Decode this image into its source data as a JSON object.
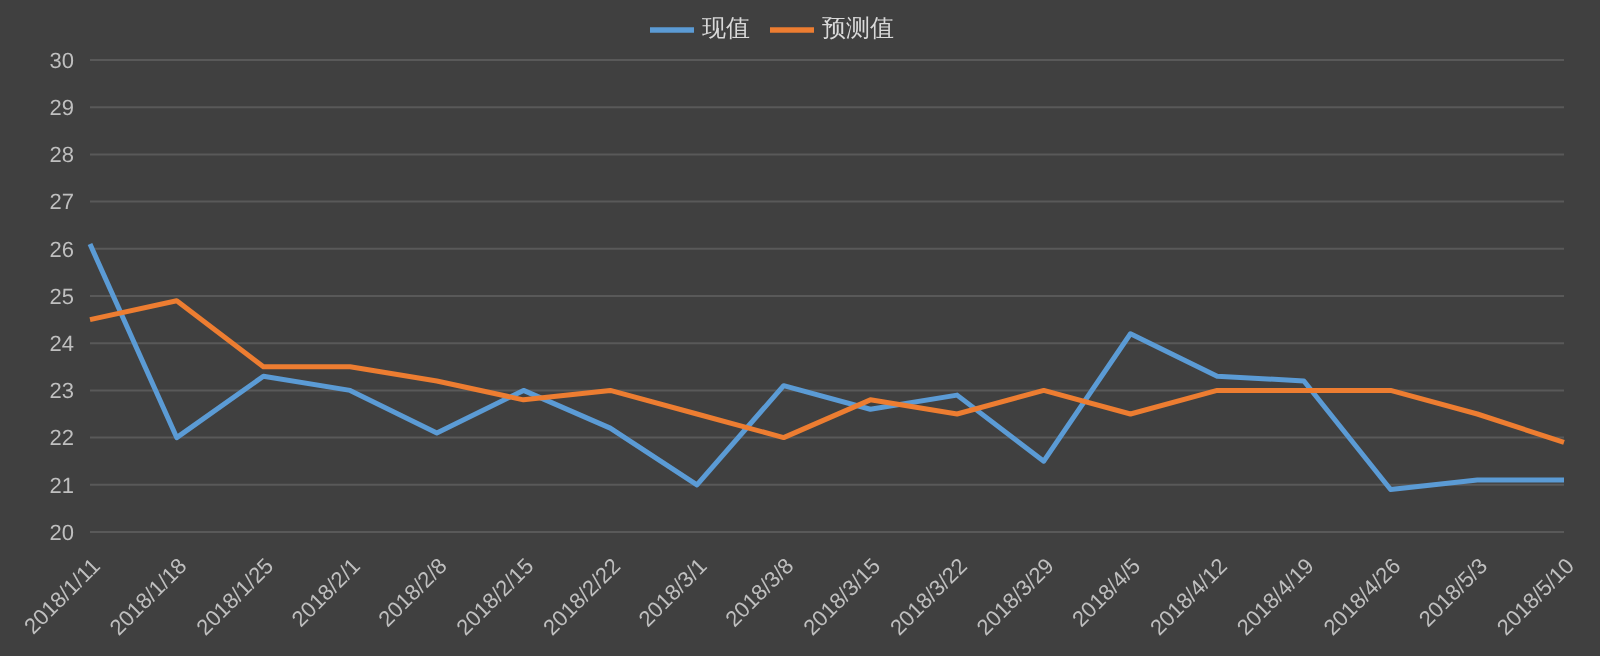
{
  "chart_data": {
    "type": "line",
    "categories": [
      "2018/1/11",
      "2018/1/18",
      "2018/1/25",
      "2018/2/1",
      "2018/2/8",
      "2018/2/15",
      "2018/2/22",
      "2018/3/1",
      "2018/3/8",
      "2018/3/15",
      "2018/3/22",
      "2018/3/29",
      "2018/4/5",
      "2018/4/12",
      "2018/4/19",
      "2018/4/26",
      "2018/5/3",
      "2018/5/10"
    ],
    "series": [
      {
        "name": "现值",
        "color": "#5b9bd5",
        "values": [
          26.1,
          22.0,
          23.3,
          23.0,
          22.1,
          23.0,
          22.2,
          21.0,
          23.1,
          22.6,
          22.9,
          21.5,
          24.2,
          23.3,
          23.2,
          20.9,
          21.1,
          21.1
        ]
      },
      {
        "name": "预测值",
        "color": "#ed7d31",
        "values": [
          24.5,
          24.9,
          23.5,
          23.5,
          23.2,
          22.8,
          23.0,
          22.5,
          22.0,
          22.8,
          22.5,
          23.0,
          22.5,
          23.0,
          23.0,
          23.0,
          22.5,
          21.9
        ]
      }
    ],
    "ylim": [
      20,
      30
    ],
    "yticks": [
      20,
      21,
      22,
      23,
      24,
      25,
      26,
      27,
      28,
      29,
      30
    ],
    "grid": "y",
    "legend": "top",
    "marker": "none",
    "line_style": "solid"
  }
}
